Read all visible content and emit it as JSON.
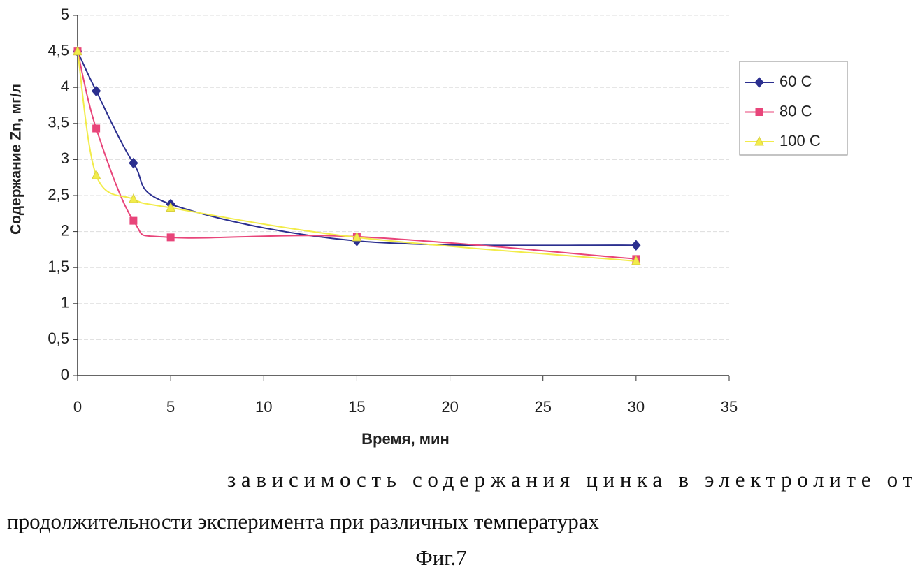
{
  "chart_data": {
    "type": "line",
    "x_label": "Время, мин",
    "y_label": "Содержание Zn, мг/л",
    "x": [
      0,
      1,
      3,
      5,
      15,
      30
    ],
    "series": [
      {
        "name": "60 C",
        "color": "#2b2f8f",
        "marker": "diamond",
        "values": [
          4.5,
          3.95,
          2.95,
          2.38,
          1.87,
          1.81
        ]
      },
      {
        "name": "80 C",
        "color": "#e8457a",
        "marker": "square",
        "values": [
          4.5,
          3.43,
          2.15,
          1.92,
          1.93,
          1.62
        ]
      },
      {
        "name": "100 C",
        "color": "#f2ec4a",
        "marker": "triangle",
        "values": [
          4.5,
          2.78,
          2.45,
          2.33,
          1.92,
          1.59
        ]
      }
    ],
    "xlim": [
      0,
      35
    ],
    "xticks": [
      0,
      5,
      10,
      15,
      20,
      25,
      30,
      35
    ],
    "ylim": [
      0,
      5
    ],
    "yticks": [
      0,
      {
        "value": 0.5,
        "label": "0,5"
      },
      1,
      {
        "value": 1.5,
        "label": "1,5"
      },
      2,
      {
        "value": 2.5,
        "label": "2,5"
      },
      3,
      {
        "value": 3.5,
        "label": "3,5"
      },
      4,
      {
        "value": 4.5,
        "label": "4,5"
      },
      5
    ],
    "grid": true,
    "legend": "right",
    "caption": [
      "зависимость содержания цинка в электролите от",
      "продолжительности эксперимента при различных температурах"
    ],
    "figure_label": "Фиг.7"
  }
}
